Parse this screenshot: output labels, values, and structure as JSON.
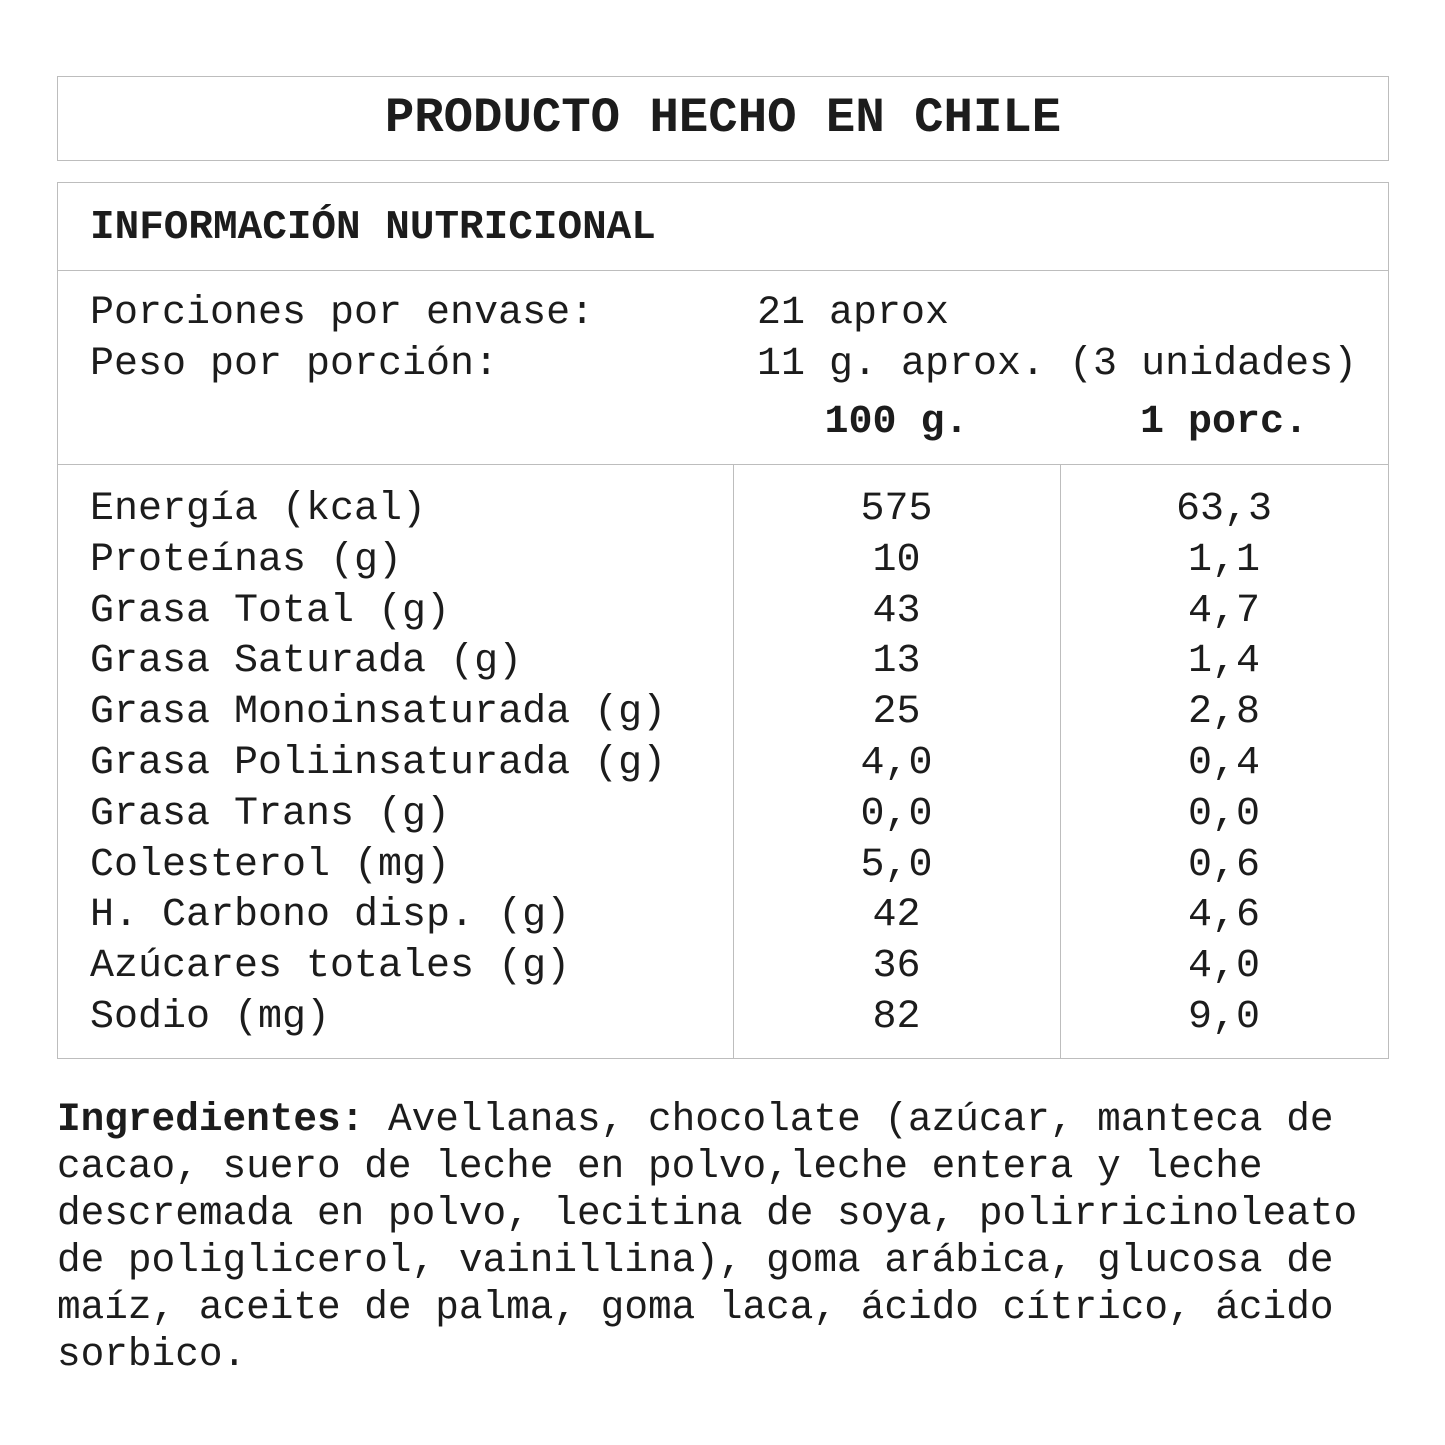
{
  "header": {
    "title": "PRODUCTO HECHO EN CHILE"
  },
  "nutrition": {
    "title": "INFORMACIÓN NUTRICIONAL",
    "servings": [
      {
        "label": "Porciones por envase:",
        "value": "21 aprox"
      },
      {
        "label": "Peso por porción:",
        "value": "11 g. aprox. (3 unidades)"
      }
    ],
    "columns": [
      "100 g.",
      "1 porc."
    ],
    "rows": [
      [
        "Energía (kcal)",
        "575",
        "63,3"
      ],
      [
        "Proteínas (g)",
        "10",
        "1,1"
      ],
      [
        "Grasa Total (g)",
        "43",
        "4,7"
      ],
      [
        "Grasa Saturada (g)",
        "13",
        "1,4"
      ],
      [
        "Grasa Monoinsaturada (g)",
        "25",
        "2,8"
      ],
      [
        "Grasa Poliinsaturada (g)",
        "4,0",
        "0,4"
      ],
      [
        "Grasa Trans (g)",
        "0,0",
        "0,0"
      ],
      [
        "Colesterol (mg)",
        "5,0",
        "0,6"
      ],
      [
        "H. Carbono disp. (g)",
        "42",
        "4,6"
      ],
      [
        "Azúcares totales (g)",
        "36",
        "4,0"
      ],
      [
        "Sodio (mg)",
        "82",
        "9,0"
      ]
    ]
  },
  "ingredients": {
    "label": "Ingredientes:",
    "text": "Avellanas, chocolate (azúcar, manteca de cacao, suero de leche en polvo,leche entera y leche descremada en polvo, lecitina de soya, polirricinoleato de poliglicerol, vainillina), goma arábica, glucosa de maíz, aceite de palma, goma laca, ácido cítrico, ácido sorbico."
  }
}
